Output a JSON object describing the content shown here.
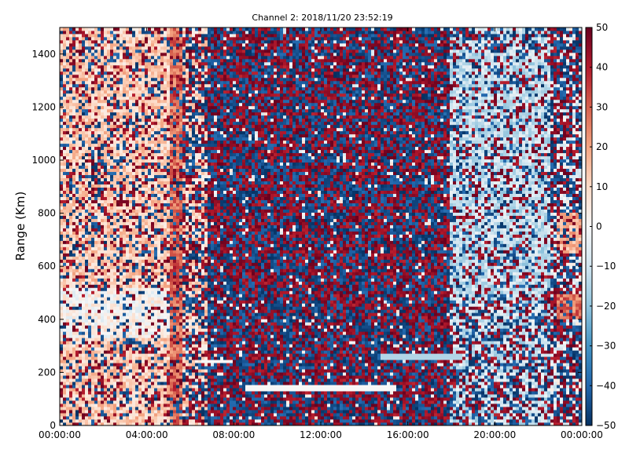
{
  "chart_data": {
    "type": "heatmap",
    "title": "Channel 2: 2018/11/20 23:52:19",
    "ylabel": "Range (Km)",
    "xlabel": "",
    "x_ticks": [
      "00:00:00",
      "04:00:00",
      "08:00:00",
      "12:00:00",
      "16:00:00",
      "20:00:00",
      "00:00:00"
    ],
    "x_tick_hours": [
      0,
      4,
      8,
      12,
      16,
      20,
      24
    ],
    "xlim_hours": [
      0,
      24
    ],
    "y_ticks": [
      "0",
      "200",
      "400",
      "600",
      "800",
      "1000",
      "1200",
      "1400"
    ],
    "y_tick_values": [
      0,
      200,
      400,
      600,
      800,
      1000,
      1200,
      1400
    ],
    "ylim": [
      0,
      1500
    ],
    "colorbar": {
      "ticks": [
        "50",
        "40",
        "30",
        "20",
        "10",
        "0",
        "−10",
        "−20",
        "−30",
        "−40",
        "−50"
      ],
      "tick_values": [
        50,
        40,
        30,
        20,
        10,
        0,
        -10,
        -20,
        -30,
        -40,
        -50
      ],
      "range": [
        -50,
        50
      ],
      "colormap": "RdBu_r"
    },
    "grid": false,
    "colors": {
      "low": "#053061",
      "mid": "#f7f7f7",
      "high": "#67001f"
    },
    "regions": [
      {
        "t0": 0,
        "t1": 5.2,
        "r0": 0,
        "r1": 1500,
        "noise": 0.35,
        "bias": 0.35
      },
      {
        "t0": 0,
        "t1": 5.2,
        "r0": 330,
        "r1": 520,
        "noise": 0.2,
        "bias": 0.05
      },
      {
        "t0": 5.0,
        "t1": 5.6,
        "r0": 0,
        "r1": 1500,
        "noise": 0.25,
        "bias": 0.8
      },
      {
        "t0": 5.6,
        "t1": 6.8,
        "r0": 0,
        "r1": 1500,
        "noise": 0.6,
        "bias": 0.3
      },
      {
        "t0": 6.8,
        "t1": 18.0,
        "r0": 0,
        "r1": 1500,
        "noise": 0.95,
        "bias": 0.0
      },
      {
        "t0": 18.0,
        "t1": 22.5,
        "r0": 0,
        "r1": 1500,
        "noise": 0.55,
        "bias": -0.3
      },
      {
        "t0": 18.0,
        "t1": 22.5,
        "r0": 500,
        "r1": 1400,
        "noise": 0.35,
        "bias": -0.35
      },
      {
        "t0": 22.5,
        "t1": 24,
        "r0": 0,
        "r1": 1500,
        "noise": 0.7,
        "bias": -0.1
      },
      {
        "t0": 22.8,
        "t1": 24,
        "r0": 400,
        "r1": 500,
        "noise": 0.2,
        "bias": 0.8
      },
      {
        "t0": 22.8,
        "t1": 24,
        "r0": 650,
        "r1": 800,
        "noise": 0.25,
        "bias": 0.5
      }
    ],
    "streaks": [
      {
        "t0": 8.5,
        "t1": 15.5,
        "r": 140,
        "value": 0
      },
      {
        "t0": 14.8,
        "t1": 18.5,
        "r": 260,
        "value": -15
      },
      {
        "t0": 6.5,
        "t1": 8.0,
        "r": 245,
        "value": 0
      }
    ]
  }
}
